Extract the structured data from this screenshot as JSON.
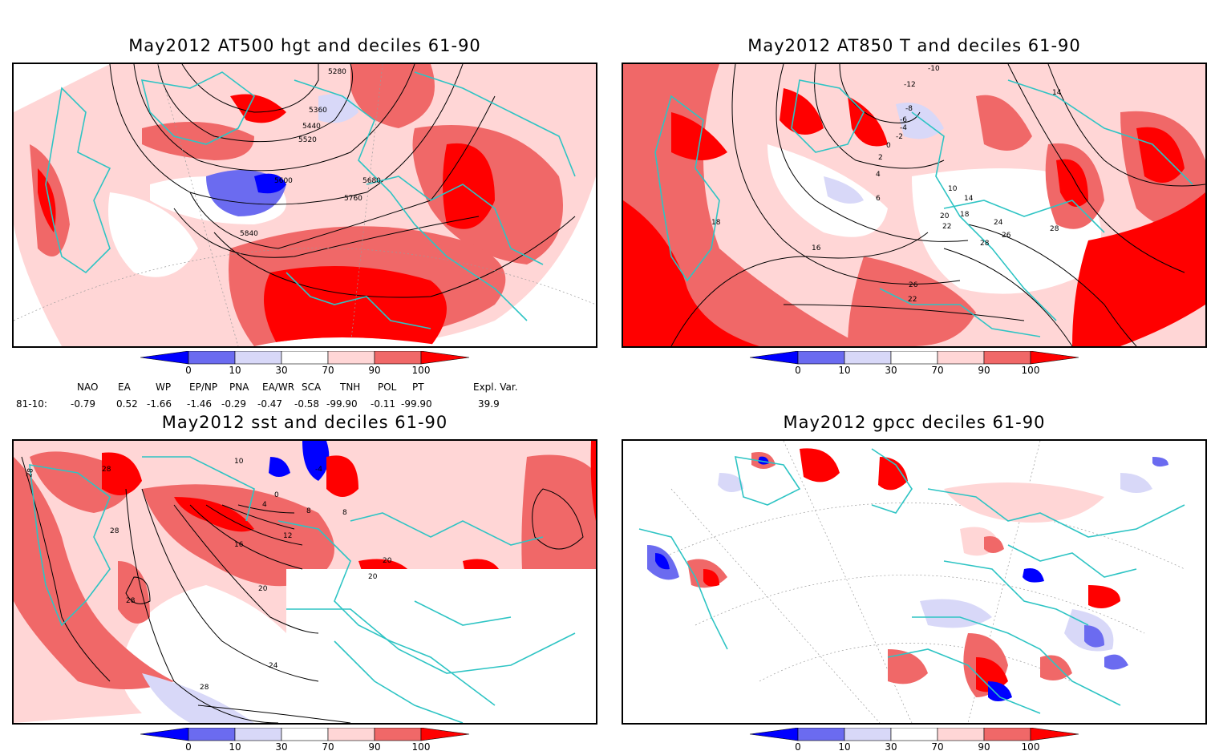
{
  "panels": [
    {
      "title": "May2012 AT500 hgt and deciles 61-90",
      "contour_labels": [
        "5280",
        "5360",
        "5440",
        "5520",
        "5600",
        "5680",
        "5760",
        "5840"
      ]
    },
    {
      "title": "May2012 AT850 T and deciles 61-90",
      "contour_labels": [
        "-10",
        "-12",
        "-8",
        "-6",
        "-4",
        "-2",
        "0",
        "2",
        "4",
        "6",
        "10",
        "14",
        "18",
        "20",
        "22",
        "24",
        "26",
        "28",
        "16",
        "18",
        "26",
        "14",
        "22",
        "28"
      ]
    },
    {
      "title": "May2012 sst and deciles 61-90",
      "contour_labels": [
        "28",
        "28",
        "28",
        "12",
        "16",
        "20",
        "24",
        "28",
        "28",
        "8",
        "4",
        "0",
        "10",
        "-4",
        "8",
        "20",
        "20"
      ]
    },
    {
      "title": "May2012 gpcc deciles 61-90",
      "contour_labels": []
    }
  ],
  "colorbar": {
    "ticks": [
      "0",
      "10",
      "30",
      "70",
      "90",
      "100"
    ],
    "colors": [
      "#0000ff",
      "#6b6bf0",
      "#d8d8f8",
      "#ffffff",
      "#ffd6d6",
      "#f06868",
      "#ff0000"
    ]
  },
  "indices": {
    "headers": [
      "NAO",
      "EA",
      "WP",
      "EP/NP",
      "PNA",
      "EA/WR",
      "SCA",
      "TNH",
      "POL",
      "PT",
      "Expl. Var."
    ],
    "row_label": "81-10:",
    "values": [
      "-0.79",
      "0.52",
      "-1.66",
      "-1.46",
      "-0.29",
      "-0.47",
      "-0.58",
      "-99.90",
      "-0.11",
      "-99.90",
      "39.9"
    ]
  },
  "colors": {
    "coast": "#2ec4c4",
    "border": "#000000",
    "contour": "#000000"
  }
}
